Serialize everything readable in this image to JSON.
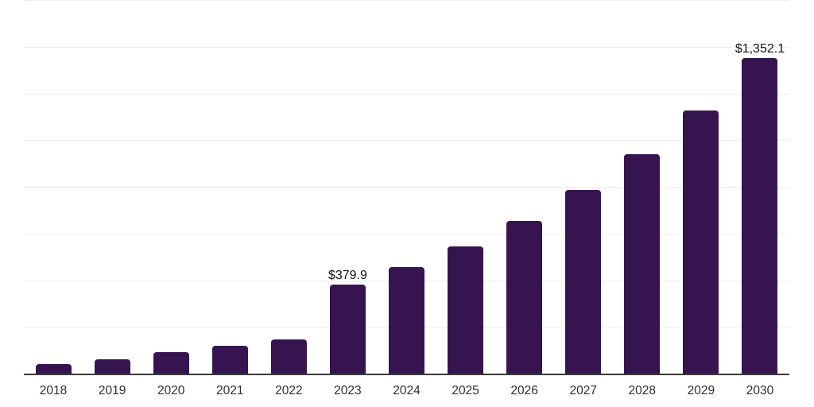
{
  "chart_data": {
    "type": "bar",
    "title": "",
    "xlabel": "",
    "ylabel": "",
    "categories": [
      "2018",
      "2019",
      "2020",
      "2021",
      "2022",
      "2023",
      "2024",
      "2025",
      "2026",
      "2027",
      "2028",
      "2029",
      "2030"
    ],
    "values": [
      42,
      62,
      92,
      119,
      145,
      379.9,
      455.5,
      546.0,
      654.6,
      784.8,
      940.9,
      1128.0,
      1352.1
    ],
    "data_labels": {
      "2023": "$379.9",
      "2030": "$1,352.1"
    },
    "ylim": [
      0,
      1600
    ],
    "gridline_interval": 200,
    "grid": "on",
    "legend": "none",
    "y_axis_tick_labels": "none",
    "colors": {
      "bar": "#361450",
      "axis_line": "#3a3a3a",
      "gridline": "#ededed",
      "tick_label": "#2e2e2e",
      "value_label": "#111111",
      "background": "#ffffff"
    }
  }
}
